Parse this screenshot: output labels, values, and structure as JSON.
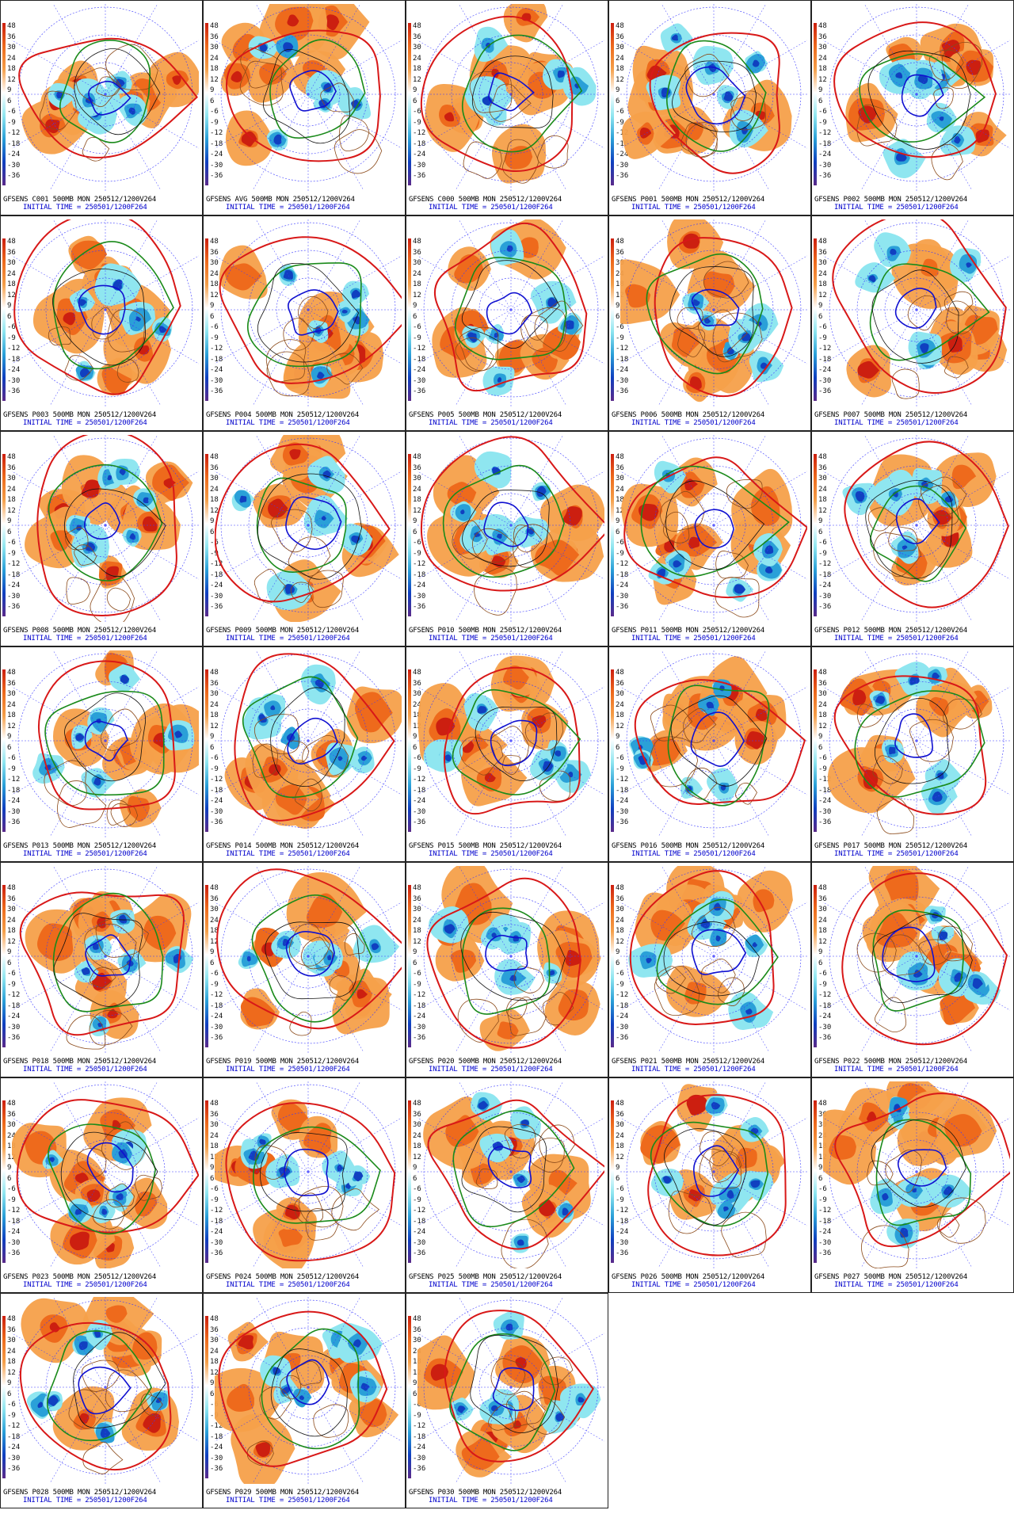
{
  "caption_suffix": "500MB MON 250512/1200V264",
  "initial_time_label": "INITIAL TIME = 250501/1200F264",
  "scale_ticks": [
    "48",
    "36",
    "30",
    "24",
    "18",
    "12",
    "9",
    "6",
    "-6",
    "-9",
    "-12",
    "-18",
    "-24",
    "-30",
    "-36"
  ],
  "colors": {
    "warm_light": "#f5a04a",
    "warm_mid": "#ee6a1c",
    "warm_dark": "#cc1f10",
    "cool_light": "#8fe6f0",
    "cool_mid": "#2aa0d8",
    "cool_dark": "#1040c0",
    "contour_red": "#d81818",
    "contour_green": "#1a8a1a",
    "contour_blue": "#1010d0",
    "contour_black": "#111111",
    "coast": "#8b4a1a",
    "grid_blue": "#3a3aff"
  },
  "panels": [
    {
      "id": "GFSENS C001"
    },
    {
      "id": "GFSENS AVG"
    },
    {
      "id": "GFSENS C000"
    },
    {
      "id": "GFSENS P001"
    },
    {
      "id": "GFSENS P002"
    },
    {
      "id": "GFSENS P003"
    },
    {
      "id": "GFSENS P004"
    },
    {
      "id": "GFSENS P005"
    },
    {
      "id": "GFSENS P006"
    },
    {
      "id": "GFSENS P007"
    },
    {
      "id": "GFSENS P008"
    },
    {
      "id": "GFSENS P009"
    },
    {
      "id": "GFSENS P010"
    },
    {
      "id": "GFSENS P011"
    },
    {
      "id": "GFSENS P012"
    },
    {
      "id": "GFSENS P013"
    },
    {
      "id": "GFSENS P014"
    },
    {
      "id": "GFSENS P015"
    },
    {
      "id": "GFSENS P016"
    },
    {
      "id": "GFSENS P017"
    },
    {
      "id": "GFSENS P018"
    },
    {
      "id": "GFSENS P019"
    },
    {
      "id": "GFSENS P020"
    },
    {
      "id": "GFSENS P021"
    },
    {
      "id": "GFSENS P022"
    },
    {
      "id": "GFSENS P023"
    },
    {
      "id": "GFSENS P024"
    },
    {
      "id": "GFSENS P025"
    },
    {
      "id": "GFSENS P026"
    },
    {
      "id": "GFSENS P027"
    },
    {
      "id": "GFSENS P028"
    },
    {
      "id": "GFSENS P029"
    },
    {
      "id": "GFSENS P030"
    }
  ]
}
